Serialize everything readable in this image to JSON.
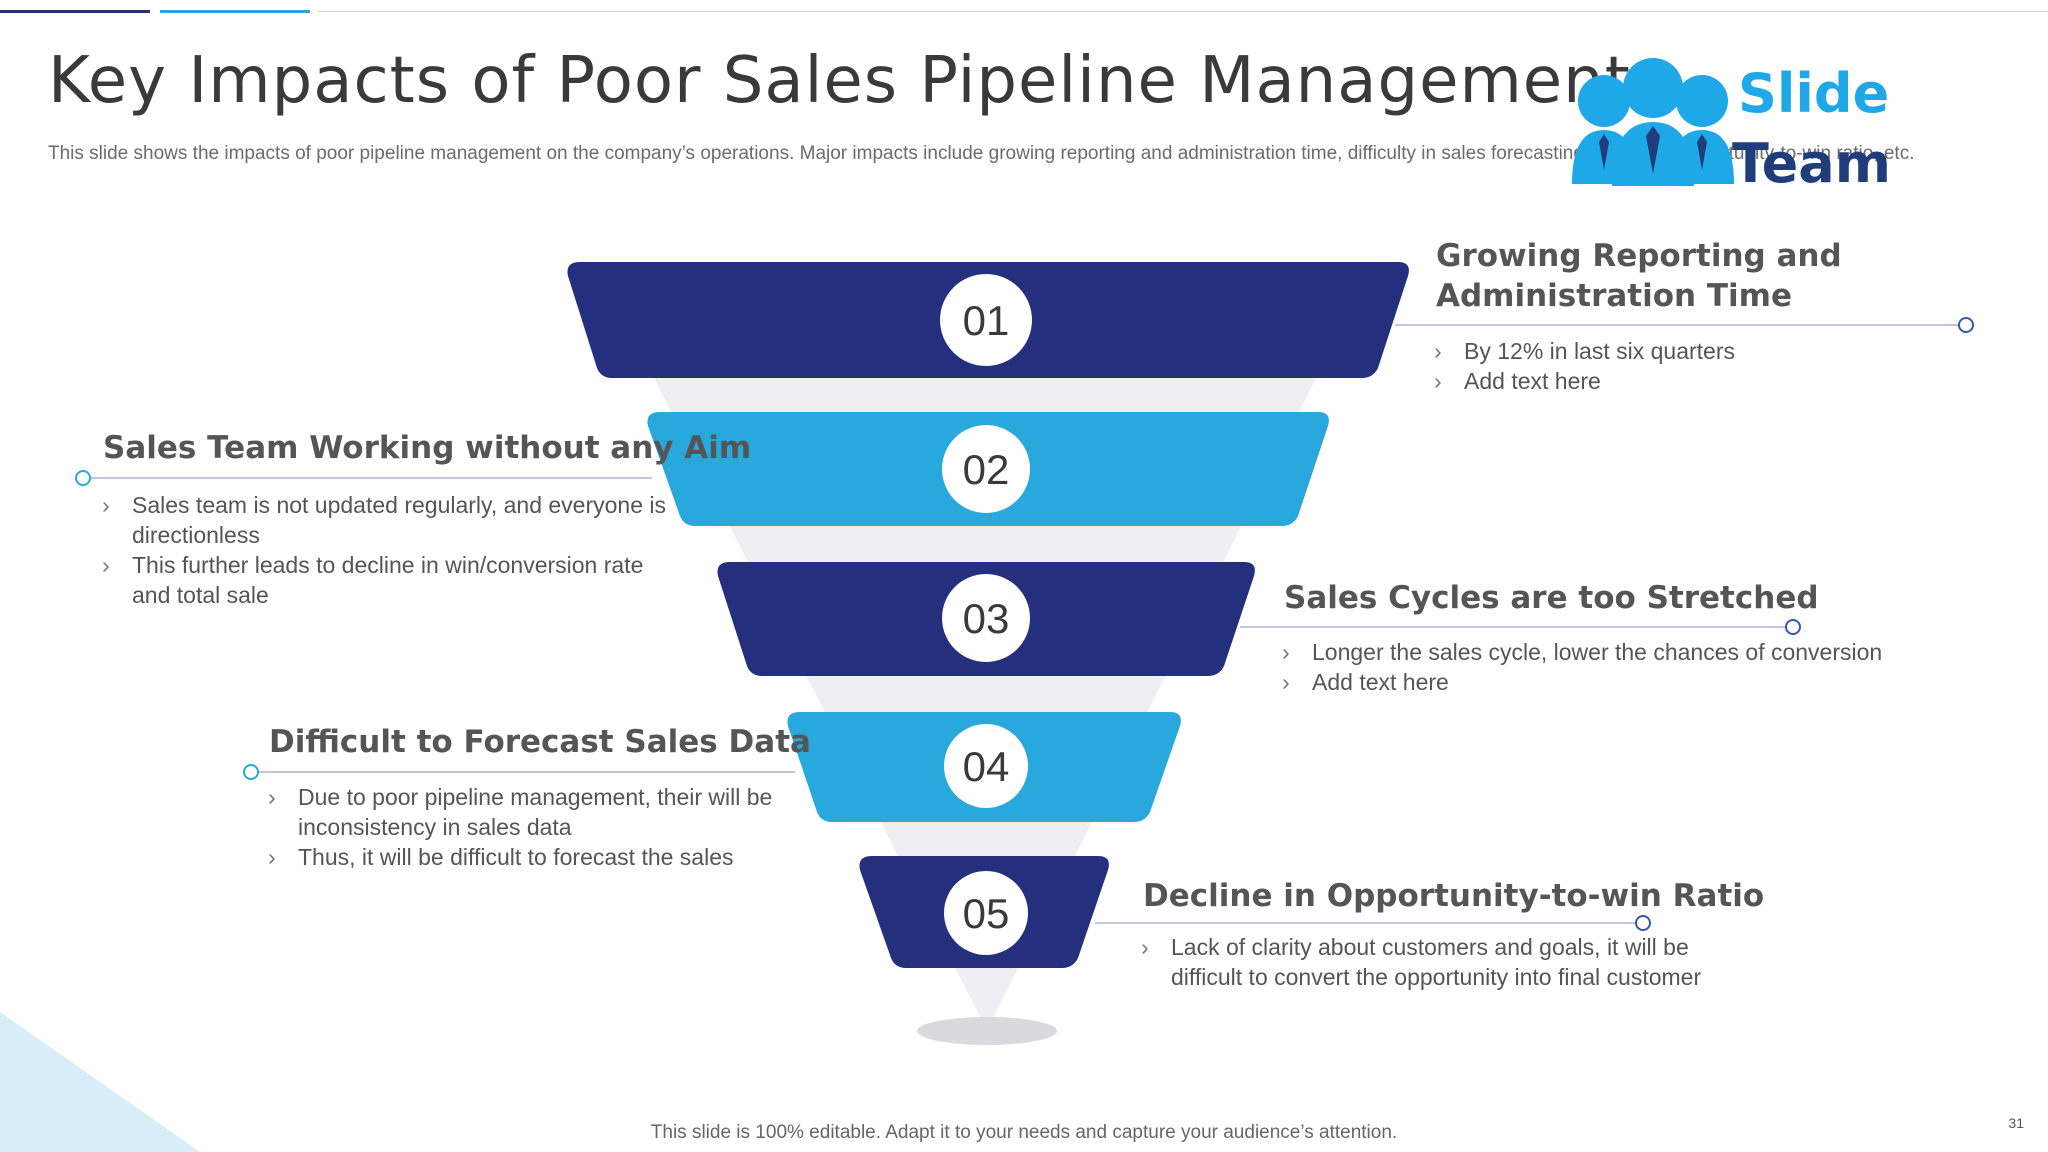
{
  "slide": {
    "title": "Key Impacts of Poor Sales Pipeline Management",
    "subtitle": "This slide shows the impacts of poor pipeline management on the company’s operations. Major impacts include growing reporting and administration time, difficulty in sales forecasting, decline in opportunity-to-win ratio, etc.",
    "footer": "This slide is 100% editable. Adapt it to your needs and capture your audience’s attention.",
    "page_number": "31"
  },
  "logo": {
    "line1": "Slide",
    "line2": "Team"
  },
  "colors": {
    "navy": "#24307e",
    "sky": "#28a8dc",
    "line": "#a8b4d8",
    "dot": "#3559a8"
  },
  "stages": [
    {
      "number": "01",
      "heading_lines": [
        "Growing Reporting and",
        "Administration Time"
      ],
      "bullets": [
        "By 12% in last six quarters",
        "Add text here"
      ]
    },
    {
      "number": "02",
      "heading_lines": [
        "Sales Team Working without any Aim"
      ],
      "bullets": [
        "Sales team is not updated regularly, and everyone is directionless",
        "This further leads to decline in win/conversion rate and total sale"
      ]
    },
    {
      "number": "03",
      "heading_lines": [
        "Sales Cycles are too Stretched"
      ],
      "bullets": [
        "Longer the sales cycle, lower the chances of conversion",
        "Add text here"
      ]
    },
    {
      "number": "04",
      "heading_lines": [
        "Difficult to Forecast Sales Data"
      ],
      "bullets": [
        "Due to poor pipeline management, their will be inconsistency in sales data",
        "Thus, it will be difficult to forecast the sales"
      ]
    },
    {
      "number": "05",
      "heading_lines": [
        "Decline in Opportunity-to-win Ratio"
      ],
      "bullets": [
        "Lack of clarity about customers and goals, it will be difficult to convert the opportunity into final customer"
      ]
    }
  ]
}
